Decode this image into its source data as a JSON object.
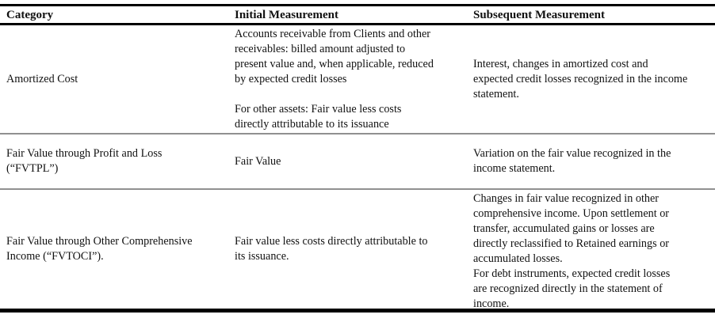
{
  "table": {
    "headers": [
      "Category",
      "Initial Measurement",
      "Subsequent Measurement"
    ],
    "rows": [
      {
        "category": "Amortized Cost",
        "initial": "Accounts receivable from Clients and other\nreceivables: billed amount adjusted to\npresent value and, when applicable, reduced\nby expected credit losses\n\nFor other assets: Fair value less costs\ndirectly attributable to its issuance",
        "subsequent": "Interest, changes in amortized cost and\nexpected credit losses recognized in the income\nstatement."
      },
      {
        "category": "Fair Value through Profit and Loss\n(“FVTPL”)",
        "initial": "Fair Value",
        "subsequent": "Variation on the fair value recognized in the\nincome statement."
      },
      {
        "category": "Fair Value through Other Comprehensive\nIncome (“FVTOCI”).",
        "initial": "Fair value less costs directly attributable to\nits issuance.",
        "subsequent": "Changes in fair value recognized in other\ncomprehensive income. Upon settlement or\ntransfer, accumulated gains or losses are\ndirectly reclassified to Retained earnings or\naccumulated losses.\nFor debt instruments, expected credit losses\nare recognized directly in the statement of\nincome."
      }
    ]
  },
  "colors": {
    "border_heavy": "#000000",
    "border_light": "#909090",
    "background": "#ffffff",
    "text": "#111111"
  }
}
